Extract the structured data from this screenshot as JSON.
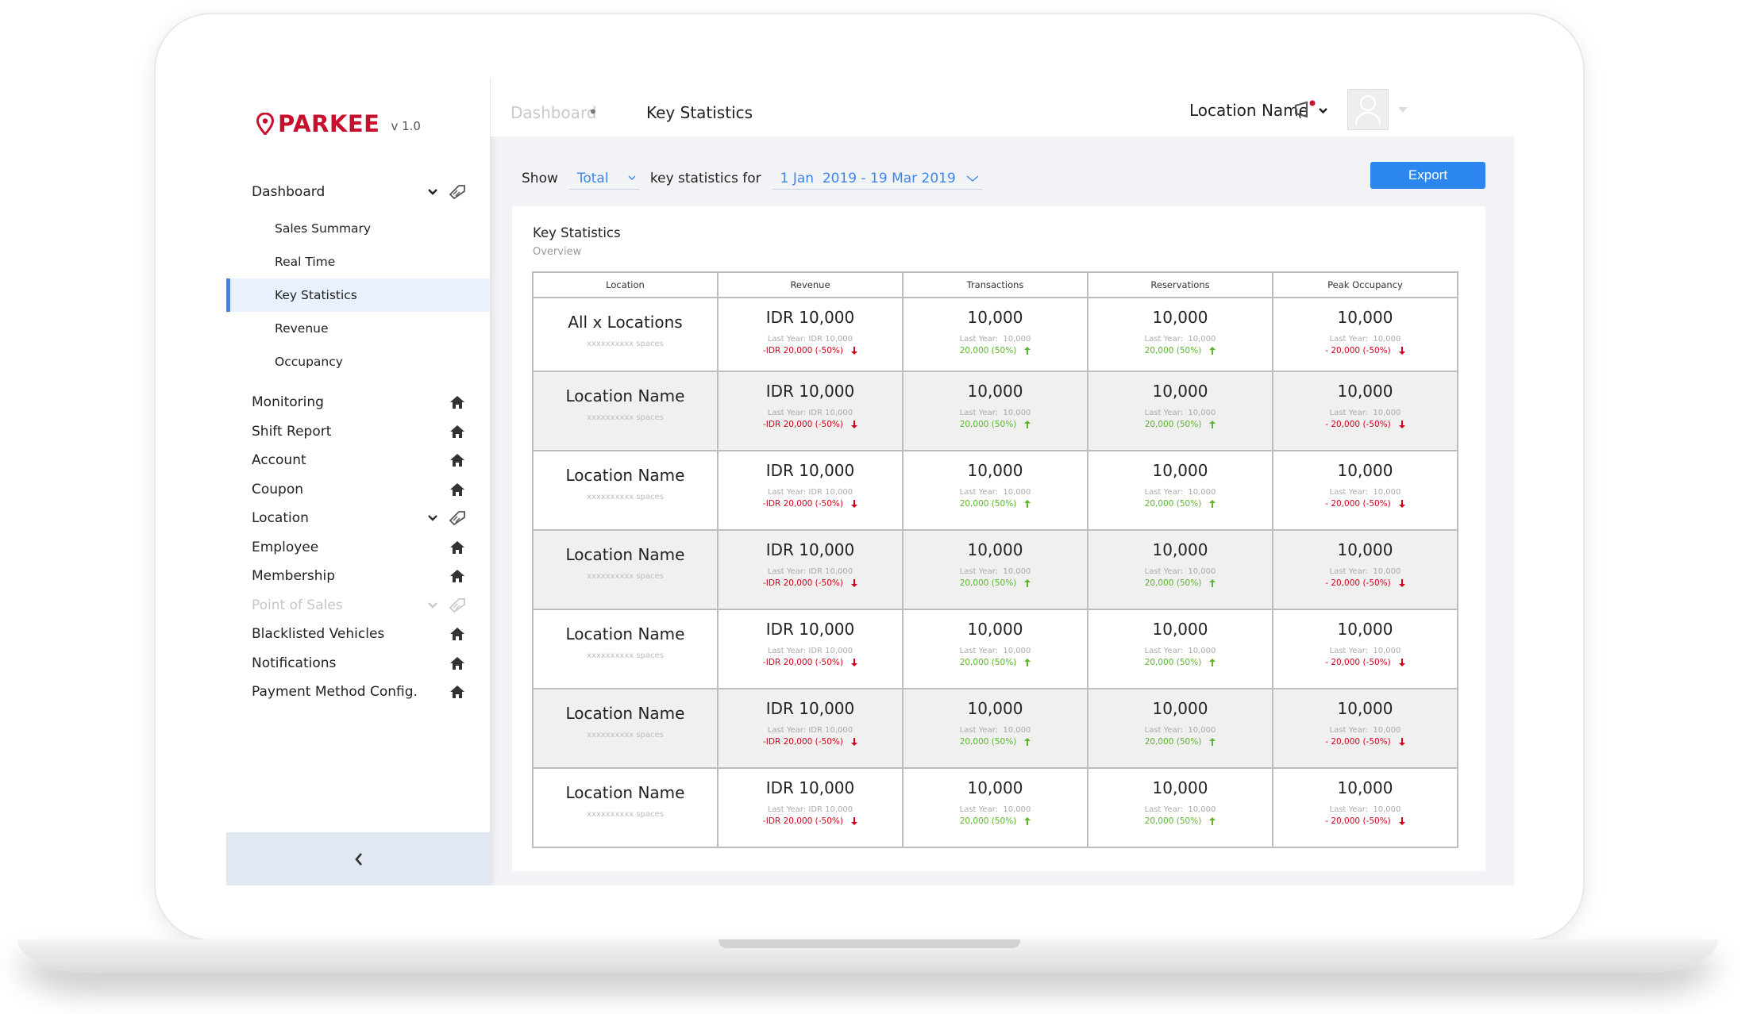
{
  "app": {
    "brand": "PARKEE",
    "version": "v 1.0"
  },
  "colors": {
    "brand": "#c8102e",
    "accent": "#2b86ee",
    "down": "#d0021b",
    "up": "#5bb52e"
  },
  "sidebar": {
    "dashboard": "Dashboard",
    "dashboard_sub": [
      "Sales Summary",
      "Real Time",
      "Key Statistics",
      "Revenue",
      "Occupancy"
    ],
    "items": [
      {
        "label": "Monitoring",
        "icon": "home-icon"
      },
      {
        "label": "Shift Report",
        "icon": "home-icon"
      },
      {
        "label": "Account",
        "icon": "home-icon"
      },
      {
        "label": "Coupon",
        "icon": "home-icon"
      },
      {
        "label": "Location",
        "icon": "pin-tag-icon"
      },
      {
        "label": "Employee",
        "icon": "home-icon"
      },
      {
        "label": "Membership",
        "icon": "home-icon"
      },
      {
        "label": "Point of Sales",
        "icon": "pin-tag-icon"
      },
      {
        "label": "Blacklisted Vehicles",
        "icon": "home-icon"
      },
      {
        "label": "Notifications",
        "icon": "home-icon"
      },
      {
        "label": "Payment Method Config.",
        "icon": "home-icon"
      }
    ]
  },
  "header": {
    "breadcrumb_parent": "Dashboard",
    "breadcrumb_sep": "•",
    "breadcrumb_current": "Key Statistics",
    "location_select": "Location Name"
  },
  "toolbar": {
    "show_label": "Show",
    "total_value": "Total",
    "for_label": "key statistics for",
    "date_range": "1 Jan  2019 - 19 Mar 2019",
    "export_label": "Export"
  },
  "card": {
    "title": "Key Statistics",
    "subtitle": "Overview",
    "columns": [
      "Location",
      "Revenue",
      "Transactions",
      "Reservations",
      "Peak Occupancy"
    ],
    "rows": [
      {
        "location": "All x Locations",
        "spaces": "xxxxxxxxxx spaces",
        "cells": [
          {
            "value": "IDR 10,000",
            "last": "Last Year: IDR 10,000",
            "change": "-IDR 20,000 (-50%)",
            "dir": "down"
          },
          {
            "value": "10,000",
            "last": "Last Year:  10,000",
            "change": "20,000 (50%)",
            "dir": "up"
          },
          {
            "value": "10,000",
            "last": "Last Year:  10,000",
            "change": "20,000 (50%)",
            "dir": "up"
          },
          {
            "value": "10,000",
            "last": "Last Year:  10,000",
            "change": "- 20,000 (-50%)",
            "dir": "down"
          }
        ]
      },
      {
        "location": "Location Name",
        "spaces": "xxxxxxxxxx spaces",
        "cells": [
          {
            "value": "IDR 10,000",
            "last": "Last Year: IDR 10,000",
            "change": "-IDR 20,000 (-50%)",
            "dir": "down"
          },
          {
            "value": "10,000",
            "last": "Last Year:  10,000",
            "change": "20,000 (50%)",
            "dir": "up"
          },
          {
            "value": "10,000",
            "last": "Last Year:  10,000",
            "change": "20,000 (50%)",
            "dir": "up"
          },
          {
            "value": "10,000",
            "last": "Last Year:  10,000",
            "change": "- 20,000 (-50%)",
            "dir": "down"
          }
        ]
      },
      {
        "location": "Location Name",
        "spaces": "xxxxxxxxxx spaces",
        "cells": [
          {
            "value": "IDR 10,000",
            "last": "Last Year: IDR 10,000",
            "change": "-IDR 20,000 (-50%)",
            "dir": "down"
          },
          {
            "value": "10,000",
            "last": "Last Year:  10,000",
            "change": "20,000 (50%)",
            "dir": "up"
          },
          {
            "value": "10,000",
            "last": "Last Year:  10,000",
            "change": "20,000 (50%)",
            "dir": "up"
          },
          {
            "value": "10,000",
            "last": "Last Year:  10,000",
            "change": "- 20,000 (-50%)",
            "dir": "down"
          }
        ]
      },
      {
        "location": "Location Name",
        "spaces": "xxxxxxxxxx spaces",
        "cells": [
          {
            "value": "IDR 10,000",
            "last": "Last Year: IDR 10,000",
            "change": "-IDR 20,000 (-50%)",
            "dir": "down"
          },
          {
            "value": "10,000",
            "last": "Last Year:  10,000",
            "change": "20,000 (50%)",
            "dir": "up"
          },
          {
            "value": "10,000",
            "last": "Last Year:  10,000",
            "change": "20,000 (50%)",
            "dir": "up"
          },
          {
            "value": "10,000",
            "last": "Last Year:  10,000",
            "change": "- 20,000 (-50%)",
            "dir": "down"
          }
        ]
      },
      {
        "location": "Location Name",
        "spaces": "xxxxxxxxxx spaces",
        "cells": [
          {
            "value": "IDR 10,000",
            "last": "Last Year: IDR 10,000",
            "change": "-IDR 20,000 (-50%)",
            "dir": "down"
          },
          {
            "value": "10,000",
            "last": "Last Year:  10,000",
            "change": "20,000 (50%)",
            "dir": "up"
          },
          {
            "value": "10,000",
            "last": "Last Year:  10,000",
            "change": "20,000 (50%)",
            "dir": "up"
          },
          {
            "value": "10,000",
            "last": "Last Year:  10,000",
            "change": "- 20,000 (-50%)",
            "dir": "down"
          }
        ]
      },
      {
        "location": "Location Name",
        "spaces": "xxxxxxxxxx spaces",
        "cells": [
          {
            "value": "IDR 10,000",
            "last": "Last Year: IDR 10,000",
            "change": "-IDR 20,000 (-50%)",
            "dir": "down"
          },
          {
            "value": "10,000",
            "last": "Last Year:  10,000",
            "change": "20,000 (50%)",
            "dir": "up"
          },
          {
            "value": "10,000",
            "last": "Last Year:  10,000",
            "change": "20,000 (50%)",
            "dir": "up"
          },
          {
            "value": "10,000",
            "last": "Last Year:  10,000",
            "change": "- 20,000 (-50%)",
            "dir": "down"
          }
        ]
      },
      {
        "location": "Location Name",
        "spaces": "xxxxxxxxxx spaces",
        "cells": [
          {
            "value": "IDR 10,000",
            "last": "Last Year: IDR 10,000",
            "change": "-IDR 20,000 (-50%)",
            "dir": "down"
          },
          {
            "value": "10,000",
            "last": "Last Year:  10,000",
            "change": "20,000 (50%)",
            "dir": "up"
          },
          {
            "value": "10,000",
            "last": "Last Year:  10,000",
            "change": "20,000 (50%)",
            "dir": "up"
          },
          {
            "value": "10,000",
            "last": "Last Year:  10,000",
            "change": "- 20,000 (-50%)",
            "dir": "down"
          }
        ]
      }
    ]
  }
}
